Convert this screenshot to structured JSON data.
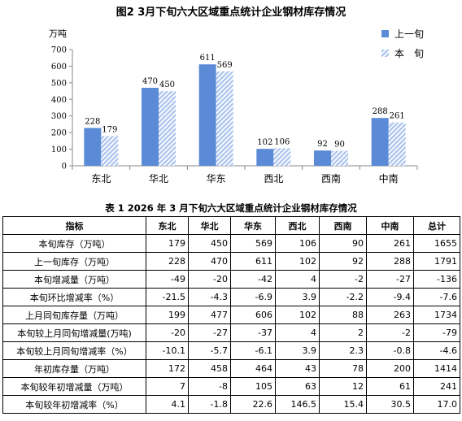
{
  "figure_title": "图2    3月下旬六大区域重点统计企业钢材库存情况",
  "chart_data": {
    "type": "bar",
    "title": "图2    3月下旬六大区域重点统计企业钢材库存情况",
    "ylabel": "万吨",
    "ylim": [
      0,
      700
    ],
    "yticks": [
      "0",
      "100",
      "200",
      "300",
      "400",
      "500",
      "600",
      "700"
    ],
    "categories": [
      "东北",
      "华北",
      "华东",
      "西北",
      "西南",
      "中南"
    ],
    "series": [
      {
        "name": "上一旬",
        "values": [
          228,
          470,
          611,
          102,
          92,
          288
        ],
        "labels": [
          "228",
          "470",
          "611",
          "102",
          "92",
          "288"
        ],
        "color": "#5b8bd7",
        "pattern": "solid"
      },
      {
        "name": "本　旬",
        "values": [
          179,
          450,
          569,
          106,
          90,
          261
        ],
        "labels": [
          "179",
          "450",
          "569",
          "106",
          "90",
          "261"
        ],
        "color": "#a9c2ee",
        "pattern": "hatched"
      }
    ],
    "legend": "top-right",
    "grid": false
  },
  "table": {
    "title": "表 1    2026 年 3 月下旬六大区域重点统计企业钢材库存情况",
    "headers": [
      "指标",
      "东北",
      "华北",
      "华东",
      "西北",
      "西南",
      "中南",
      "总计"
    ],
    "rows": [
      [
        "本旬库存（万吨）",
        "179",
        "450",
        "569",
        "106",
        "90",
        "261",
        "1655"
      ],
      [
        "上一旬库存（万吨）",
        "228",
        "470",
        "611",
        "102",
        "92",
        "288",
        "1791"
      ],
      [
        "本旬增减量（万吨）",
        "-49",
        "-20",
        "-42",
        "4",
        "-2",
        "-27",
        "-136"
      ],
      [
        "本旬环比增减率（%）",
        "-21.5",
        "-4.3",
        "-6.9",
        "3.9",
        "-2.2",
        "-9.4",
        "-7.6"
      ],
      [
        "上月同旬库存量（万吨）",
        "199",
        "477",
        "606",
        "102",
        "88",
        "263",
        "1734"
      ],
      [
        "本旬较上月同旬增减量(万吨)",
        "-20",
        "-27",
        "-37",
        "4",
        "2",
        "-2",
        "-79"
      ],
      [
        "本旬较上月同旬增减率（%）",
        "-10.1",
        "-5.7",
        "-6.1",
        "3.9",
        "2.3",
        "-0.8",
        "-4.6"
      ],
      [
        "年初库存量（万吨）",
        "172",
        "458",
        "464",
        "43",
        "78",
        "200",
        "1414"
      ],
      [
        "本旬较年初增减量（万吨）",
        "7",
        "-8",
        "105",
        "63",
        "12",
        "61",
        "241"
      ],
      [
        "本旬较年初增减率（%）",
        "4.1",
        "-1.8",
        "22.6",
        "146.5",
        "15.4",
        "30.5",
        "17.0"
      ]
    ]
  }
}
